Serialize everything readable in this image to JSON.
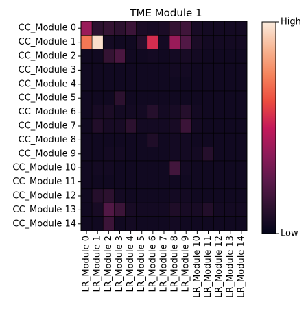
{
  "chart_data": {
    "type": "heatmap",
    "title": "TME Module 1",
    "xlabel": "",
    "ylabel": "",
    "x_categories": [
      "LR_Module 0",
      "LR_Module 1",
      "LR_Module 2",
      "LR_Module 3",
      "LR_Module 4",
      "LR_Module 5",
      "LR_Module 6",
      "LR_Module 7",
      "LR_Module 8",
      "LR_Module 9",
      "LR_Module 10",
      "LR_Module 11",
      "LR_Module 12",
      "LR_Module 13",
      "LR_Module 14"
    ],
    "y_categories": [
      "CC_Module 0",
      "CC_Module 1",
      "CC_Module 2",
      "CC_Module 3",
      "CC_Module 4",
      "CC_Module 5",
      "CC_Module 6",
      "CC_Module 7",
      "CC_Module 8",
      "CC_Module 9",
      "CC_Module 10",
      "CC_Module 11",
      "CC_Module 12",
      "CC_Module 13",
      "CC_Module 14"
    ],
    "values": [
      [
        0.4,
        0.12,
        0.14,
        0.12,
        0.16,
        0.07,
        0.06,
        0.07,
        0.14,
        0.17,
        0.06,
        0.05,
        0.05,
        0.05,
        0.05
      ],
      [
        0.72,
        0.97,
        0.05,
        0.04,
        0.04,
        0.1,
        0.55,
        0.05,
        0.4,
        0.22,
        0.07,
        0.05,
        0.05,
        0.05,
        0.05
      ],
      [
        0.04,
        0.04,
        0.14,
        0.2,
        0.04,
        0.04,
        0.05,
        0.04,
        0.05,
        0.06,
        0.05,
        0.04,
        0.04,
        0.04,
        0.04
      ],
      [
        0.04,
        0.04,
        0.04,
        0.04,
        0.04,
        0.04,
        0.04,
        0.04,
        0.05,
        0.05,
        0.04,
        0.04,
        0.04,
        0.04,
        0.04
      ],
      [
        0.04,
        0.04,
        0.04,
        0.04,
        0.04,
        0.04,
        0.04,
        0.04,
        0.04,
        0.04,
        0.04,
        0.04,
        0.04,
        0.04,
        0.04
      ],
      [
        0.04,
        0.04,
        0.04,
        0.12,
        0.04,
        0.04,
        0.04,
        0.04,
        0.04,
        0.04,
        0.04,
        0.04,
        0.04,
        0.04,
        0.04
      ],
      [
        0.04,
        0.06,
        0.07,
        0.05,
        0.05,
        0.05,
        0.1,
        0.05,
        0.06,
        0.1,
        0.05,
        0.04,
        0.04,
        0.04,
        0.04
      ],
      [
        0.04,
        0.09,
        0.06,
        0.06,
        0.12,
        0.05,
        0.05,
        0.05,
        0.06,
        0.16,
        0.05,
        0.04,
        0.04,
        0.04,
        0.04
      ],
      [
        0.04,
        0.04,
        0.04,
        0.04,
        0.04,
        0.04,
        0.08,
        0.04,
        0.05,
        0.05,
        0.04,
        0.04,
        0.04,
        0.04,
        0.04
      ],
      [
        0.04,
        0.04,
        0.05,
        0.05,
        0.04,
        0.04,
        0.04,
        0.04,
        0.05,
        0.05,
        0.05,
        0.1,
        0.04,
        0.04,
        0.04
      ],
      [
        0.04,
        0.05,
        0.05,
        0.04,
        0.04,
        0.04,
        0.04,
        0.04,
        0.18,
        0.05,
        0.04,
        0.04,
        0.04,
        0.04,
        0.04
      ],
      [
        0.04,
        0.04,
        0.04,
        0.04,
        0.04,
        0.04,
        0.04,
        0.04,
        0.04,
        0.04,
        0.04,
        0.04,
        0.04,
        0.04,
        0.04
      ],
      [
        0.04,
        0.1,
        0.12,
        0.05,
        0.04,
        0.04,
        0.04,
        0.04,
        0.05,
        0.05,
        0.04,
        0.04,
        0.04,
        0.04,
        0.04
      ],
      [
        0.04,
        0.06,
        0.22,
        0.16,
        0.06,
        0.05,
        0.05,
        0.05,
        0.08,
        0.06,
        0.06,
        0.09,
        0.05,
        0.05,
        0.05
      ],
      [
        0.04,
        0.04,
        0.16,
        0.04,
        0.05,
        0.04,
        0.04,
        0.04,
        0.05,
        0.04,
        0.04,
        0.04,
        0.04,
        0.04,
        0.04
      ]
    ],
    "vrange": [
      0,
      1
    ],
    "colorbar": {
      "high_label": "High",
      "low_label": "Low",
      "placement": "right"
    },
    "colormap": [
      "#03051a",
      "#2e1230",
      "#5c1a4b",
      "#8e1b59",
      "#c4195a",
      "#ec4c3f",
      "#f5845c",
      "#f7b694",
      "#faebdd"
    ],
    "grid": true,
    "cell_edge_color": "#000000"
  }
}
